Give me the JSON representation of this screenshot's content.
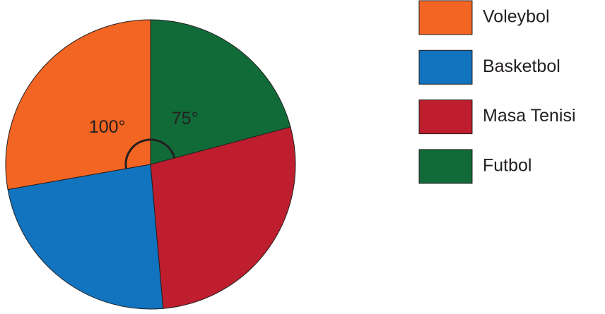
{
  "chart_data": {
    "type": "pie",
    "categories": [
      "Voleybol",
      "Basketbol",
      "Masa Tenisi",
      "Futbol"
    ],
    "values": [
      100,
      85,
      100,
      75
    ],
    "value_labels": [
      "100°",
      null,
      null,
      "75°"
    ],
    "colors": [
      "#f26522",
      "#1273be",
      "#be1e2d",
      "#116b39"
    ]
  }
}
